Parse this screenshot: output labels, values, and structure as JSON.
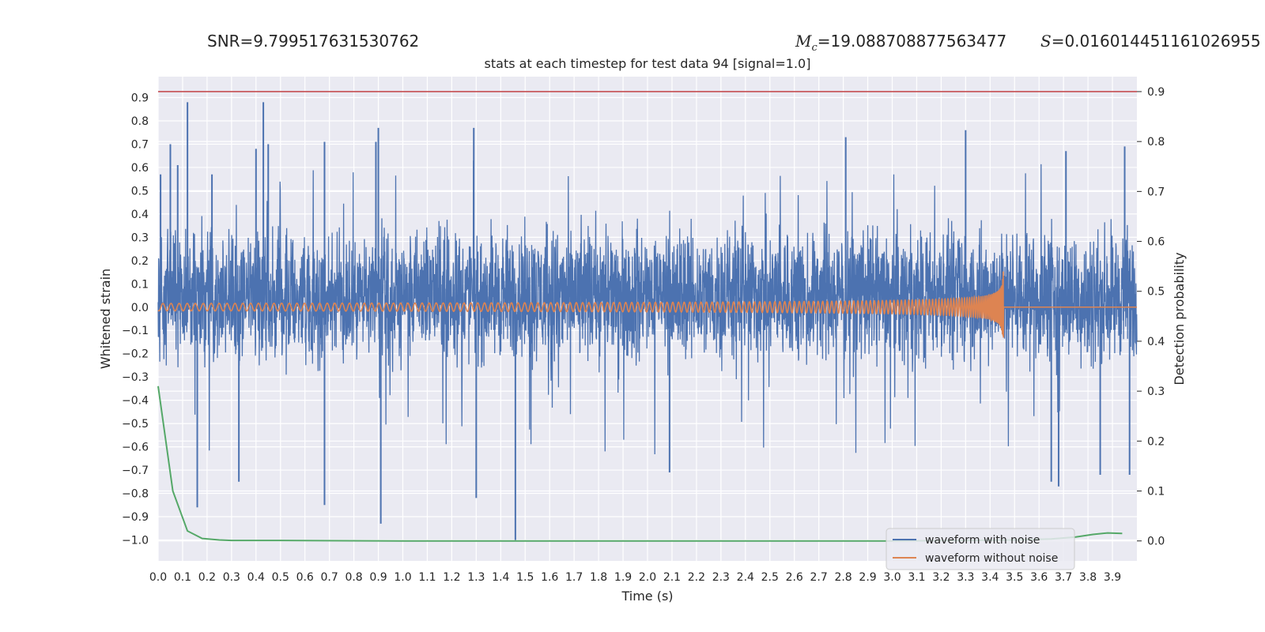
{
  "header": {
    "snr_text": "SNR=9.799517631530762",
    "mc_symbol": "M",
    "mc_subscript": "c",
    "mc_value": "=19.088708877563477",
    "s_symbol": "S",
    "s_value": "=0.016014451161026955"
  },
  "chart_data": {
    "type": "line",
    "title": "stats at each timestep for test data 94 [signal=1.0]",
    "xlabel": "Time (s)",
    "ylabel": "Whitened strain",
    "y2label": "Detection probability",
    "xlim": [
      0.0,
      4.0
    ],
    "ylim": [
      -1.09,
      0.99
    ],
    "y2lim": [
      -0.04,
      0.93
    ],
    "xticks": [
      0.0,
      0.1,
      0.2,
      0.3,
      0.4,
      0.5,
      0.6,
      0.7,
      0.8,
      0.9,
      1.0,
      1.1,
      1.2,
      1.3,
      1.4,
      1.5,
      1.6,
      1.7,
      1.8,
      1.9,
      2.0,
      2.1,
      2.2,
      2.3,
      2.4,
      2.5,
      2.6,
      2.7,
      2.8,
      2.9,
      3.0,
      3.1,
      3.2,
      3.3,
      3.4,
      3.5,
      3.6,
      3.7,
      3.8,
      3.9
    ],
    "yticks": [
      0.9,
      0.8,
      0.7,
      0.6,
      0.5,
      0.4,
      0.3,
      0.2,
      0.1,
      0.0,
      -0.1,
      -0.2,
      -0.3,
      -0.4,
      -0.5,
      -0.6,
      -0.7,
      -0.8,
      -0.9,
      -1.0
    ],
    "y2ticks": [
      0.9,
      0.8,
      0.7,
      0.6,
      0.5,
      0.4,
      0.3,
      0.2,
      0.1,
      0.0
    ],
    "grid": true,
    "legend_position": "lower-right",
    "threshold": {
      "value": 0.9,
      "axis": "right",
      "color": "#c44e52"
    },
    "colors": {
      "noise": "#4c72b0",
      "signal": "#dd8452",
      "probability": "#55a868",
      "background": "#eaeaf2",
      "grid": "#ffffff"
    },
    "series": [
      {
        "name": "waveform with noise",
        "axis": "left",
        "kind": "noise",
        "envelope": [
          -0.35,
          0.45
        ],
        "peaks": [
          {
            "x": 0.01,
            "y": 0.57
          },
          {
            "x": 0.05,
            "y": 0.7
          },
          {
            "x": 0.08,
            "y": 0.61
          },
          {
            "x": 0.12,
            "y": 0.88
          },
          {
            "x": 0.16,
            "y": -0.86
          },
          {
            "x": 0.22,
            "y": 0.57
          },
          {
            "x": 0.33,
            "y": -0.75
          },
          {
            "x": 0.4,
            "y": 0.68
          },
          {
            "x": 0.43,
            "y": 0.88
          },
          {
            "x": 0.45,
            "y": 0.7
          },
          {
            "x": 0.68,
            "y": 0.71
          },
          {
            "x": 0.68,
            "y": -0.85
          },
          {
            "x": 0.89,
            "y": 0.71
          },
          {
            "x": 0.9,
            "y": 0.77
          },
          {
            "x": 0.91,
            "y": -0.93
          },
          {
            "x": 1.29,
            "y": 0.77
          },
          {
            "x": 1.3,
            "y": -0.82
          },
          {
            "x": 1.46,
            "y": -1.0
          },
          {
            "x": 2.09,
            "y": -0.71
          },
          {
            "x": 2.81,
            "y": 0.73
          },
          {
            "x": 3.3,
            "y": 0.76
          },
          {
            "x": 3.65,
            "y": -0.75
          },
          {
            "x": 3.68,
            "y": -0.77
          },
          {
            "x": 3.71,
            "y": 0.67
          },
          {
            "x": 3.85,
            "y": -0.72
          },
          {
            "x": 3.95,
            "y": 0.69
          },
          {
            "x": 3.97,
            "y": -0.72
          }
        ]
      },
      {
        "name": "waveform without noise",
        "axis": "left",
        "kind": "chirp",
        "start": 0.0,
        "merger": 3.455,
        "amplitude_start": 0.016,
        "amplitude_peak": 0.47,
        "amplitude_min": -0.5
      },
      {
        "name": "detection probability",
        "axis": "right",
        "kind": "line",
        "x": [
          0.0,
          0.06,
          0.12,
          0.18,
          0.25,
          0.3,
          0.5,
          1.0,
          1.5,
          2.0,
          2.5,
          3.0,
          3.3,
          3.5,
          3.65,
          3.75,
          3.82,
          3.88,
          3.94
        ],
        "y": [
          0.31,
          0.1,
          0.02,
          0.005,
          0.002,
          0.001,
          0.001,
          0.0,
          0.0,
          0.0,
          0.0,
          0.0,
          0.001,
          0.002,
          0.004,
          0.008,
          0.013,
          0.016,
          0.015
        ]
      }
    ]
  }
}
